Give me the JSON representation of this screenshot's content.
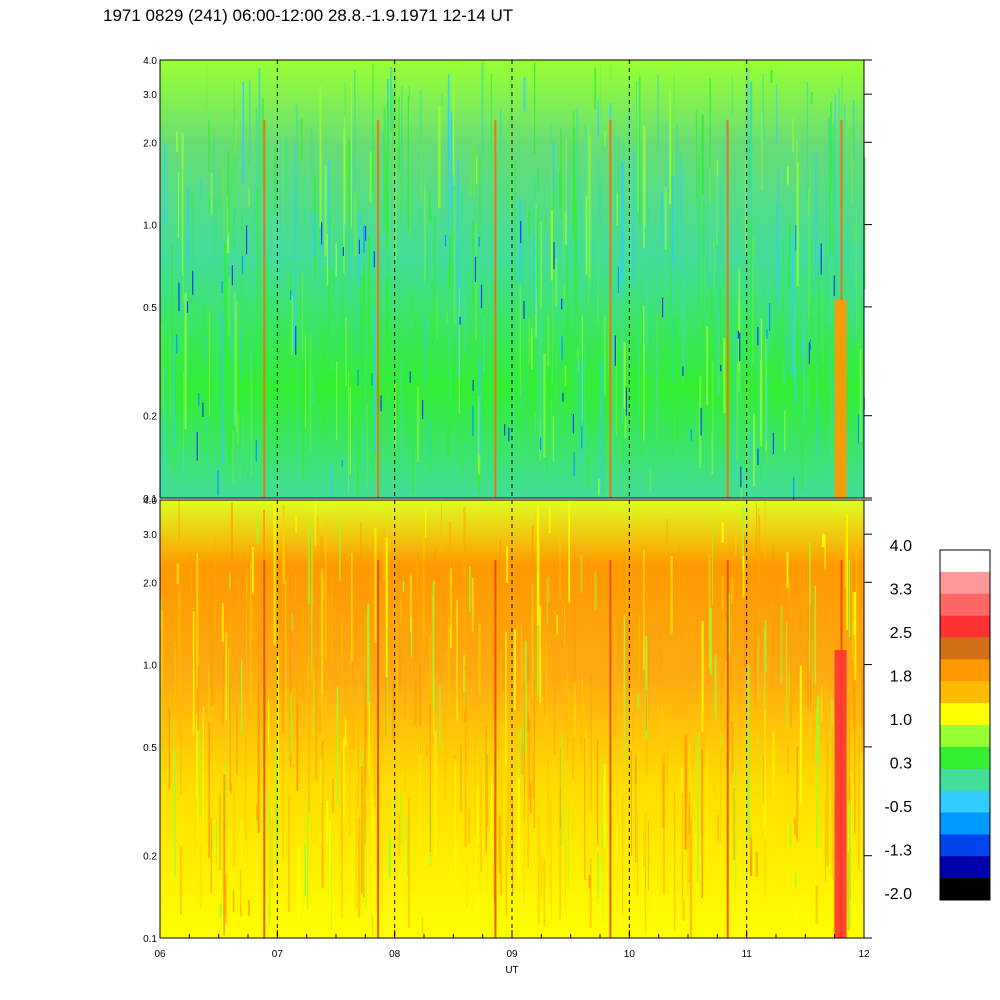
{
  "title": "1971 0829 (241) 06:00-12:00 28.8.-1.9.1971  12-14 UT",
  "chart_data": [
    {
      "type": "heatmap",
      "panel": "upper",
      "x_range": [
        6,
        12
      ],
      "y_range": [
        0.1,
        4.0
      ],
      "y_scale": "log",
      "y_ticks": [
        "0.1",
        "0.2",
        "0.5",
        "1.0",
        "2.0",
        "3.0",
        "4.0"
      ],
      "x_ticks": [
        "06",
        "07",
        "08",
        "09",
        "10",
        "11",
        "12"
      ],
      "hour_markers_dashed": [
        7,
        8,
        9,
        10,
        11
      ],
      "dominant_band": "-0.5 to 1.0",
      "bright_events_x": [
        6.88,
        7.85,
        8.85,
        9.83,
        10.83,
        11.8
      ]
    },
    {
      "type": "heatmap",
      "panel": "lower",
      "x_range": [
        6,
        12
      ],
      "y_range": [
        0.1,
        4.0
      ],
      "y_scale": "log",
      "y_ticks": [
        "0.1",
        "0.2",
        "0.5",
        "1.0",
        "2.0",
        "3.0",
        "4.0"
      ],
      "x_ticks": [
        "06",
        "07",
        "08",
        "09",
        "10",
        "11",
        "12"
      ],
      "hour_markers_dashed": [
        7,
        8,
        9,
        10,
        11
      ],
      "dominant_band": "1.0 to 1.8",
      "bright_events_x": [
        6.88,
        7.85,
        8.85,
        9.83,
        10.83,
        11.8
      ]
    }
  ],
  "xlabel": "UT",
  "colorbar": {
    "labels": [
      "4.0",
      "3.3",
      "2.5",
      "1.8",
      "1.0",
      "0.3",
      "-0.5",
      "-1.3",
      "-2.0"
    ],
    "colors": [
      "#ffffff",
      "#ff9999",
      "#ff6666",
      "#ff3333",
      "#d2701a",
      "#ff9900",
      "#ffbb00",
      "#ffff00",
      "#99ff33",
      "#33ee33",
      "#44dd99",
      "#33ccff",
      "#0099ff",
      "#0044ee",
      "#0000aa",
      "#000000"
    ]
  }
}
